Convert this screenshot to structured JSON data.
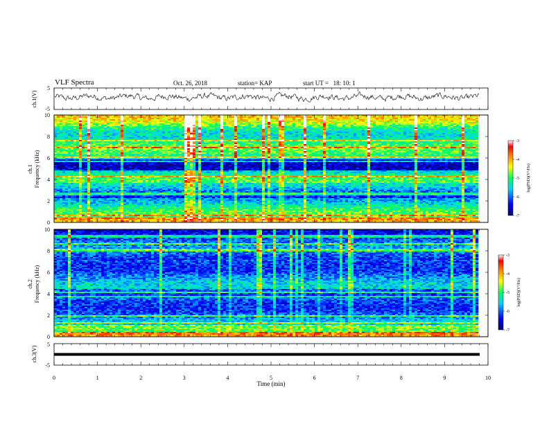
{
  "header": {
    "title": "VLF Spectra",
    "date": "Oct. 26, 2018",
    "station": "station= KAP",
    "start": "start UT =   18: 10: 1"
  },
  "chart_data": [
    {
      "type": "line",
      "name": "ch1-waveform",
      "ylabel": "ch.1(V)",
      "ylim": [
        -5,
        5
      ],
      "yticks": [
        "5",
        "-5"
      ],
      "xlim": [
        0,
        10
      ]
    },
    {
      "type": "heatmap",
      "name": "ch1-spectrogram",
      "ylabel": "Frequency (kHz)",
      "channel_label": "ch.1",
      "ylim": [
        0,
        10
      ],
      "yticks": [
        "10",
        "8",
        "6",
        "4",
        "2",
        "0"
      ],
      "xlim": [
        0,
        10
      ],
      "data_end_min": 9.8,
      "colorbar": {
        "label": "log(PSD)(V²/Hz)",
        "range": [
          -7,
          -3
        ],
        "ticks": [
          "-3",
          "-4",
          "-5",
          "-6",
          "-7"
        ]
      }
    },
    {
      "type": "heatmap",
      "name": "ch2-spectrogram",
      "ylabel": "Frequency (kHz)",
      "channel_label": "ch.2",
      "ylim": [
        0,
        10
      ],
      "yticks": [
        "10",
        "8",
        "6",
        "4",
        "2",
        "0"
      ],
      "xlim": [
        0,
        10
      ],
      "data_end_min": 9.8,
      "colorbar": {
        "label": "log(PSD)(V²/Hz)",
        "range": [
          -7,
          -3
        ],
        "ticks": [
          "-3",
          "-4",
          "-5",
          "-6",
          "-7"
        ]
      }
    },
    {
      "type": "line",
      "name": "ch3-waveform",
      "ylabel": "ch.3(V)",
      "ylim": [
        -5,
        5
      ],
      "yticks": [
        "5",
        "-5"
      ],
      "flat_value": 0,
      "xlim": [
        0,
        10
      ]
    }
  ],
  "xaxis": {
    "label": "Time (min)",
    "ticks": [
      "0",
      "1",
      "2",
      "3",
      "4",
      "5",
      "6",
      "7",
      "8",
      "9",
      "10"
    ]
  }
}
